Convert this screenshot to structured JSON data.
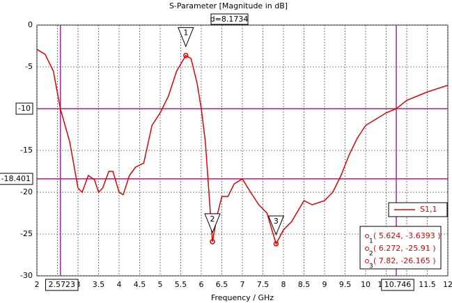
{
  "chart_data": {
    "type": "line",
    "title": "S-Parameter [Magnitude in dB]",
    "annotation": "d=8.1734",
    "xlabel": "Frequency / GHz",
    "x": [
      2.0,
      2.2,
      2.4,
      2.57,
      2.8,
      3.0,
      3.1,
      3.25,
      3.4,
      3.5,
      3.6,
      3.75,
      3.85,
      4.0,
      4.1,
      4.25,
      4.4,
      4.6,
      4.8,
      5.0,
      5.2,
      5.4,
      5.624,
      5.75,
      5.9,
      6.0,
      6.1,
      6.2,
      6.272,
      6.4,
      6.5,
      6.65,
      6.8,
      7.0,
      7.2,
      7.4,
      7.6,
      7.82,
      8.0,
      8.2,
      8.5,
      8.7,
      9.0,
      9.2,
      9.4,
      9.6,
      9.8,
      10.0,
      10.5,
      10.746,
      11.0,
      11.5,
      12.0
    ],
    "series": [
      {
        "name": "S1,1",
        "color": "#e00000",
        "values": [
          -2.9,
          -3.5,
          -5.5,
          -10,
          -14,
          -19.5,
          -20,
          -18,
          -18.5,
          -20,
          -19.5,
          -17.5,
          -17.5,
          -20,
          -20.3,
          -18,
          -17,
          -16.5,
          -12,
          -10.5,
          -8.5,
          -5.5,
          -3.64,
          -4,
          -7,
          -10,
          -14,
          -21,
          -25.91,
          -22.5,
          -20.5,
          -20.5,
          -19,
          -18.4,
          -20,
          -21.5,
          -22.5,
          -26.165,
          -24.5,
          -23.5,
          -21,
          -21.5,
          -21,
          -20,
          -18,
          -15.5,
          -13.5,
          -12,
          -10.5,
          -10,
          -9,
          -8,
          -7.2
        ]
      }
    ],
    "xlim": [
      2,
      12
    ],
    "ylim": [
      -30,
      0
    ],
    "xticks": [
      2,
      2.5,
      3,
      3.5,
      4,
      4.5,
      5,
      5.5,
      6,
      6.5,
      7,
      7.5,
      8,
      8.5,
      9,
      9.5,
      10,
      10.5,
      11,
      11.5,
      12
    ],
    "yticks": [
      0,
      -5,
      -10,
      -15,
      -20,
      -25,
      -30
    ],
    "grid": true,
    "vlines": [
      {
        "value": 2.5723,
        "color": "#9a2aa0"
      },
      {
        "value": 10.746,
        "color": "#9a2aa0"
      }
    ],
    "hlines": [
      {
        "value": -10,
        "color": "#b0206e"
      },
      {
        "value": -18.401,
        "color": "#b0206e"
      }
    ],
    "markers": [
      {
        "label": "1",
        "x": 5.624,
        "y": -3.6393,
        "value_label": "( 5.624, -3.6393 )"
      },
      {
        "label": "2",
        "x": 6.272,
        "y": -25.91,
        "value_label": "( 6.272, -25.91 )"
      },
      {
        "label": "3",
        "x": 7.82,
        "y": -26.165,
        "value_label": "( 7.82, -26.165 )"
      }
    ]
  }
}
